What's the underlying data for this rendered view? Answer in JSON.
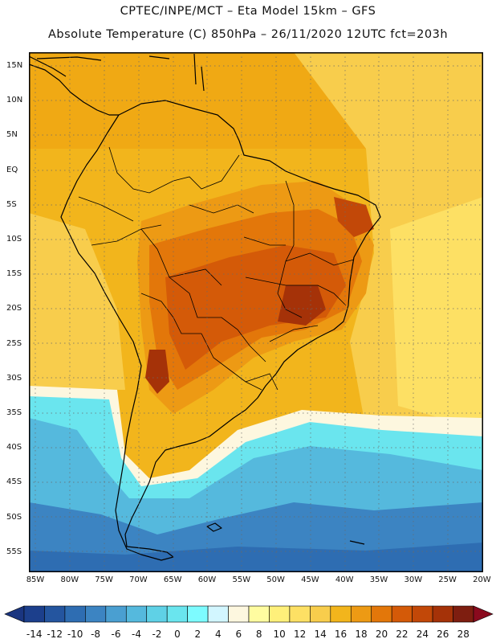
{
  "header": {
    "line1": "CPTEC/INPE/MCT –  Eta Model 15km – GFS",
    "line2": "Absolute Temperature (C) 850hPa – 26/11/2020 12UTC fct=203h"
  },
  "lat_labels": [
    "15N",
    "10N",
    "5N",
    "EQ",
    "5S",
    "10S",
    "15S",
    "20S",
    "25S",
    "30S",
    "35S",
    "40S",
    "45S",
    "50S",
    "55S"
  ],
  "lon_labels": [
    "85W",
    "80W",
    "75W",
    "70W",
    "65W",
    "60W",
    "55W",
    "50W",
    "45W",
    "40W",
    "35W",
    "30W",
    "25W",
    "20W"
  ],
  "colorbar": {
    "labels": [
      "-14",
      "-12",
      "-10",
      "-8",
      "-6",
      "-4",
      "-2",
      "0",
      "2",
      "4",
      "6",
      "8",
      "10",
      "12",
      "14",
      "16",
      "18",
      "20",
      "22",
      "24",
      "26",
      "28"
    ],
    "colors": [
      "#1c3f8c",
      "#24559f",
      "#2e6db2",
      "#3c84c2",
      "#4a9fd1",
      "#55b9dd",
      "#5fd1e6",
      "#6ae5ee",
      "#7dfbff",
      "#d2f6ff",
      "#fdf7df",
      "#fffca0",
      "#fff07a",
      "#fde064",
      "#f8cd4c",
      "#f2b51c",
      "#ed9a14",
      "#e3770a",
      "#d45a08",
      "#c24808",
      "#a53208",
      "#7e1e10"
    ],
    "under_color": "#1a3580",
    "over_color": "#8a0a1e"
  },
  "legend_colors": {
    "ocean_cold": "#4fc8e0",
    "ocean_mild": "#f5c23a",
    "land_hot": "#d2691e"
  }
}
